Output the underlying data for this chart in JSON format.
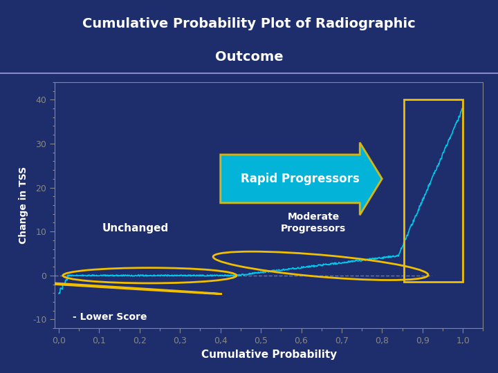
{
  "title_line1": "Cumulative Probability Plot of Radiographic",
  "title_line2": "Outcome",
  "xlabel": "Cumulative Probability",
  "ylabel": "Change in TSS",
  "bg_color": "#1e2d6b",
  "title_bg": "#2a3f8f",
  "plot_bg": "#1e2d6b",
  "line_color": "#00c8e8",
  "dashed_line_color": "#aaaaaa",
  "ylim": [
    -12,
    44
  ],
  "xlim": [
    -0.01,
    1.05
  ],
  "yticks": [
    -10,
    0,
    10,
    20,
    30,
    40
  ],
  "xtick_labels": [
    "0,0",
    "0,1",
    "0,2",
    "0,3",
    "0,4",
    "0,5",
    "0,6",
    "0,7",
    "0,8",
    "0,9",
    "1,0"
  ],
  "xtick_vals": [
    0.0,
    0.1,
    0.2,
    0.3,
    0.4,
    0.5,
    0.6,
    0.7,
    0.8,
    0.9,
    1.0
  ],
  "arrow_fill": "#00c8e8",
  "arrow_edge": "#f0c000",
  "rect_edge": "#f0c000",
  "ellipse_edge": "#f0c000",
  "text_color": "#ffffff",
  "axis_color": "#888888",
  "tick_color": "#888888",
  "sep_line_color": "#8888cc"
}
